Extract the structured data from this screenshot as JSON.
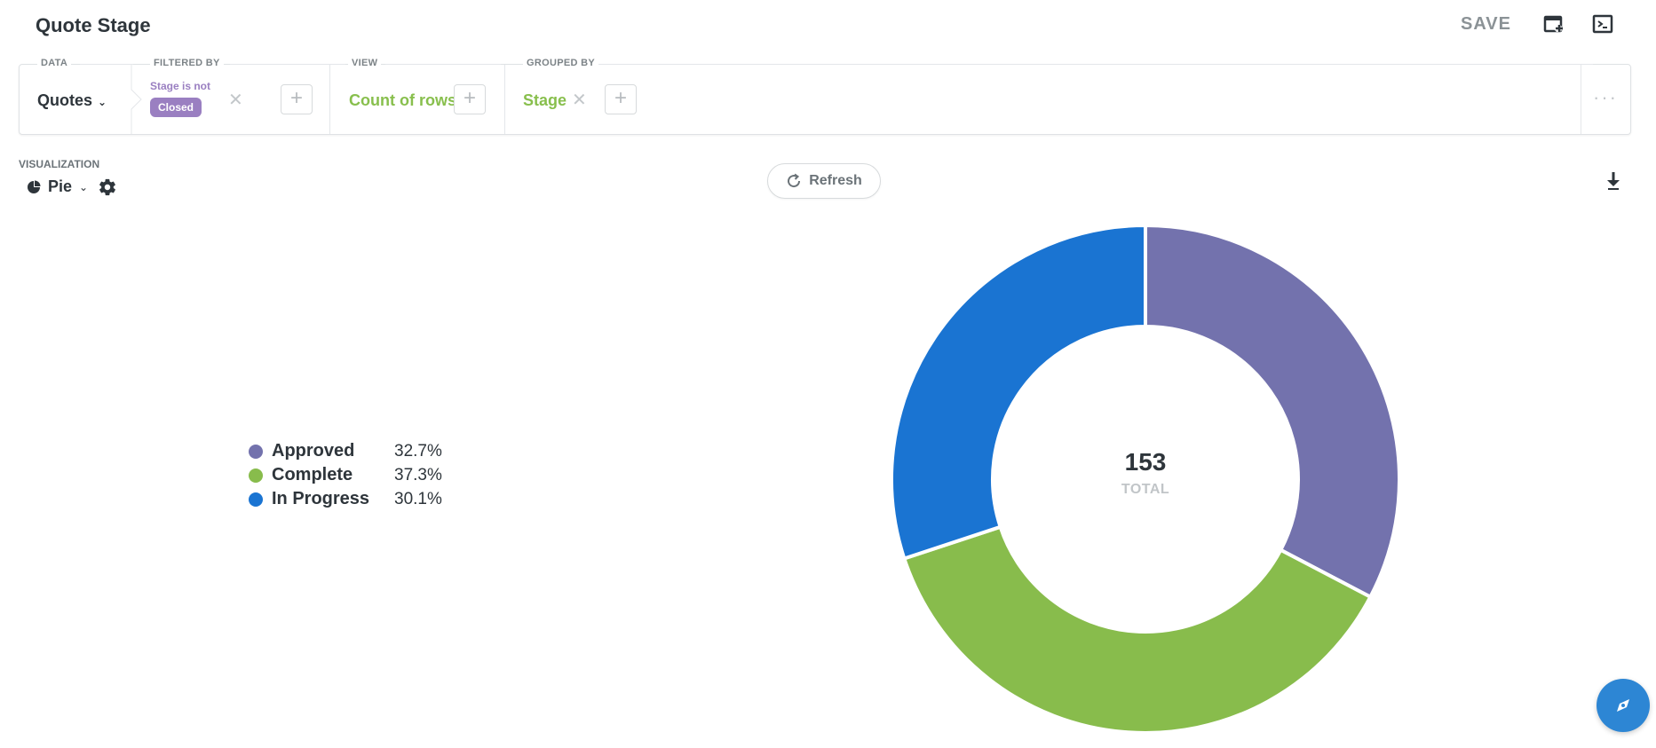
{
  "header": {
    "title": "Quote Stage",
    "save_label": "SAVE",
    "icons": [
      "add-to-dashboard-icon",
      "sql-editor-icon"
    ]
  },
  "query_bar": {
    "data": {
      "label": "DATA",
      "value": "Quotes"
    },
    "filter": {
      "label": "FILTERED BY",
      "text": "Stage is not",
      "pill": "Closed"
    },
    "view": {
      "label": "VIEW",
      "value": "Count of rows"
    },
    "grouped": {
      "label": "GROUPED BY",
      "value": "Stage"
    },
    "more": "···"
  },
  "visualization": {
    "label": "VISUALIZATION",
    "type": "Pie",
    "icon": "pie-chart-icon"
  },
  "refresh_label": "Refresh",
  "colors": {
    "approved": "#7372ad",
    "complete": "#88bc4c",
    "in_progress": "#1a74d2",
    "filter": "#9a7fc1",
    "accent_green": "#88bf4d",
    "fab": "#2d86d4"
  },
  "chart_data": {
    "type": "pie",
    "donut": true,
    "total": "153",
    "total_label": "TOTAL",
    "legend_position": "left",
    "series": [
      {
        "name": "Approved",
        "value": 50,
        "percent": "32.7%",
        "color": "#7372ad"
      },
      {
        "name": "Complete",
        "value": 57,
        "percent": "37.3%",
        "color": "#88bc4c"
      },
      {
        "name": "In Progress",
        "value": 46,
        "percent": "30.1%",
        "color": "#1a74d2"
      }
    ]
  }
}
